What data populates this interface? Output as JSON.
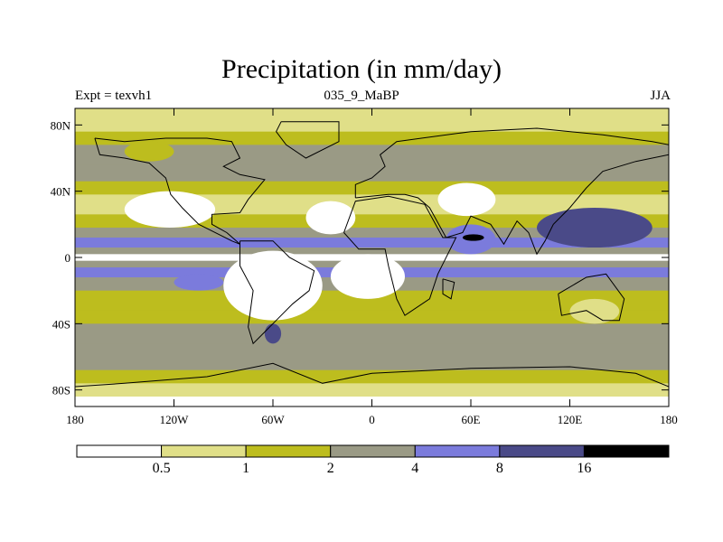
{
  "chart_data": {
    "type": "heatmap",
    "title": "Precipitation (in mm/day)",
    "left_label": "Expt = texvh1",
    "center_label": "035_9_MaBP",
    "right_label": "JJA",
    "x_axis": {
      "range": [
        -180,
        180
      ],
      "ticks": [
        -180,
        -120,
        -60,
        0,
        60,
        120,
        180
      ],
      "tick_labels": [
        "180",
        "120W",
        "60W",
        "0",
        "60E",
        "120E",
        "180"
      ]
    },
    "y_axis": {
      "range": [
        -90,
        90
      ],
      "ticks": [
        80,
        40,
        0,
        -40,
        -80
      ],
      "tick_labels": [
        "80N",
        "40N",
        "0",
        "40S",
        "80S"
      ]
    },
    "colorbar": {
      "levels": [
        "0.5",
        "1",
        "2",
        "4",
        "8",
        "16"
      ],
      "colors": [
        "#ffffff",
        "#e0df88",
        "#bdbd1e",
        "#9a9a85",
        "#7b7bdc",
        "#4a4a88",
        "#000000"
      ]
    },
    "bands": [
      {
        "lat": [
          76,
          90
        ],
        "level": 1
      },
      {
        "lat": [
          68,
          76
        ],
        "level": 2
      },
      {
        "lat": [
          56,
          68
        ],
        "level": 3
      },
      {
        "lat": [
          46,
          56
        ],
        "level": 3
      },
      {
        "lat": [
          38,
          46
        ],
        "level": 2
      },
      {
        "lat": [
          26,
          38
        ],
        "level": 1
      },
      {
        "lat": [
          18,
          26
        ],
        "level": 2
      },
      {
        "lat": [
          12,
          18
        ],
        "level": 3
      },
      {
        "lat": [
          6,
          12
        ],
        "level": 4
      },
      {
        "lat": [
          2,
          6
        ],
        "level": 3
      },
      {
        "lat": [
          -2,
          2
        ],
        "level": 0
      },
      {
        "lat": [
          -6,
          -2
        ],
        "level": 3
      },
      {
        "lat": [
          -12,
          -6
        ],
        "level": 4
      },
      {
        "lat": [
          -20,
          -12
        ],
        "level": 3
      },
      {
        "lat": [
          -32,
          -20
        ],
        "level": 2
      },
      {
        "lat": [
          -40,
          -32
        ],
        "level": 2
      },
      {
        "lat": [
          -52,
          -40
        ],
        "level": 3
      },
      {
        "lat": [
          -60,
          -52
        ],
        "level": 3
      },
      {
        "lat": [
          -68,
          -60
        ],
        "level": 3
      },
      {
        "lat": [
          -76,
          -68
        ],
        "level": 2
      },
      {
        "lat": [
          -84,
          -76
        ],
        "level": 1
      },
      {
        "lat": [
          -90,
          -84
        ],
        "level": 0
      }
    ],
    "blobs": [
      {
        "lon": [
          -150,
          -95
        ],
        "lat": [
          18,
          40
        ],
        "level": 0
      },
      {
        "lon": [
          -40,
          -10
        ],
        "lat": [
          14,
          34
        ],
        "level": 0
      },
      {
        "lon": [
          40,
          75
        ],
        "lat": [
          25,
          45
        ],
        "level": 0
      },
      {
        "lon": [
          -90,
          -30
        ],
        "lat": [
          -38,
          4
        ],
        "level": 0
      },
      {
        "lon": [
          -25,
          20
        ],
        "lat": [
          -25,
          2
        ],
        "level": 0
      },
      {
        "lon": [
          45,
          75
        ],
        "lat": [
          2,
          20
        ],
        "level": 4
      },
      {
        "lon": [
          100,
          170
        ],
        "lat": [
          6,
          30
        ],
        "level": 5
      },
      {
        "lon": [
          55,
          68
        ],
        "lat": [
          10,
          14
        ],
        "level": 6
      },
      {
        "lon": [
          -65,
          -55
        ],
        "lat": [
          -52,
          -40
        ],
        "level": 5
      },
      {
        "lon": [
          -120,
          -90
        ],
        "lat": [
          -20,
          -10
        ],
        "level": 4
      },
      {
        "lon": [
          120,
          150
        ],
        "lat": [
          -40,
          -25
        ],
        "level": 1
      },
      {
        "lon": [
          -150,
          -120
        ],
        "lat": [
          58,
          70
        ],
        "level": 2
      }
    ],
    "continents": [
      {
        "name": "north-america",
        "lon_lat": [
          [
            -168,
            72
          ],
          [
            -150,
            70
          ],
          [
            -125,
            72
          ],
          [
            -100,
            72
          ],
          [
            -85,
            70
          ],
          [
            -80,
            60
          ],
          [
            -90,
            55
          ],
          [
            -80,
            50
          ],
          [
            -65,
            47
          ],
          [
            -75,
            35
          ],
          [
            -80,
            27
          ],
          [
            -97,
            26
          ],
          [
            -97,
            20
          ],
          [
            -88,
            15
          ],
          [
            -80,
            8
          ],
          [
            -85,
            10
          ],
          [
            -105,
            20
          ],
          [
            -115,
            30
          ],
          [
            -122,
            38
          ],
          [
            -125,
            48
          ],
          [
            -135,
            57
          ],
          [
            -150,
            60
          ],
          [
            -165,
            62
          ],
          [
            -168,
            72
          ]
        ]
      },
      {
        "name": "greenland",
        "lon_lat": [
          [
            -55,
            82
          ],
          [
            -20,
            82
          ],
          [
            -20,
            70
          ],
          [
            -40,
            60
          ],
          [
            -52,
            68
          ],
          [
            -58,
            76
          ],
          [
            -55,
            82
          ]
        ]
      },
      {
        "name": "south-america",
        "lon_lat": [
          [
            -80,
            10
          ],
          [
            -60,
            10
          ],
          [
            -50,
            0
          ],
          [
            -35,
            -8
          ],
          [
            -38,
            -20
          ],
          [
            -48,
            -28
          ],
          [
            -58,
            -38
          ],
          [
            -65,
            -45
          ],
          [
            -72,
            -52
          ],
          [
            -75,
            -42
          ],
          [
            -72,
            -20
          ],
          [
            -80,
            -5
          ],
          [
            -80,
            10
          ]
        ]
      },
      {
        "name": "europe-asia",
        "lon_lat": [
          [
            -10,
            36
          ],
          [
            -10,
            44
          ],
          [
            0,
            48
          ],
          [
            8,
            55
          ],
          [
            5,
            62
          ],
          [
            15,
            70
          ],
          [
            30,
            72
          ],
          [
            60,
            76
          ],
          [
            100,
            78
          ],
          [
            140,
            74
          ],
          [
            170,
            70
          ],
          [
            180,
            68
          ],
          [
            180,
            62
          ],
          [
            160,
            58
          ],
          [
            140,
            52
          ],
          [
            130,
            42
          ],
          [
            120,
            30
          ],
          [
            110,
            20
          ],
          [
            105,
            10
          ],
          [
            100,
            2
          ],
          [
            95,
            15
          ],
          [
            88,
            22
          ],
          [
            80,
            8
          ],
          [
            72,
            20
          ],
          [
            60,
            25
          ],
          [
            55,
            15
          ],
          [
            45,
            12
          ],
          [
            35,
            30
          ],
          [
            28,
            36
          ],
          [
            20,
            38
          ],
          [
            10,
            38
          ],
          [
            -10,
            36
          ]
        ]
      },
      {
        "name": "africa",
        "lon_lat": [
          [
            -17,
            15
          ],
          [
            -10,
            34
          ],
          [
            10,
            37
          ],
          [
            32,
            32
          ],
          [
            43,
            12
          ],
          [
            51,
            12
          ],
          [
            40,
            -10
          ],
          [
            35,
            -25
          ],
          [
            20,
            -35
          ],
          [
            15,
            -25
          ],
          [
            10,
            -5
          ],
          [
            8,
            5
          ],
          [
            -8,
            5
          ],
          [
            -17,
            15
          ]
        ]
      },
      {
        "name": "madagascar",
        "lon_lat": [
          [
            43,
            -13
          ],
          [
            50,
            -15
          ],
          [
            48,
            -25
          ],
          [
            43,
            -22
          ],
          [
            43,
            -13
          ]
        ]
      },
      {
        "name": "australia",
        "lon_lat": [
          [
            113,
            -22
          ],
          [
            130,
            -12
          ],
          [
            142,
            -10
          ],
          [
            153,
            -25
          ],
          [
            150,
            -38
          ],
          [
            140,
            -38
          ],
          [
            130,
            -32
          ],
          [
            115,
            -35
          ],
          [
            113,
            -22
          ]
        ]
      },
      {
        "name": "antarctica",
        "lon_lat": [
          [
            -180,
            -78
          ],
          [
            -150,
            -76
          ],
          [
            -100,
            -72
          ],
          [
            -60,
            -64
          ],
          [
            -30,
            -76
          ],
          [
            0,
            -70
          ],
          [
            60,
            -67
          ],
          [
            120,
            -66
          ],
          [
            160,
            -70
          ],
          [
            180,
            -78
          ]
        ]
      }
    ]
  }
}
